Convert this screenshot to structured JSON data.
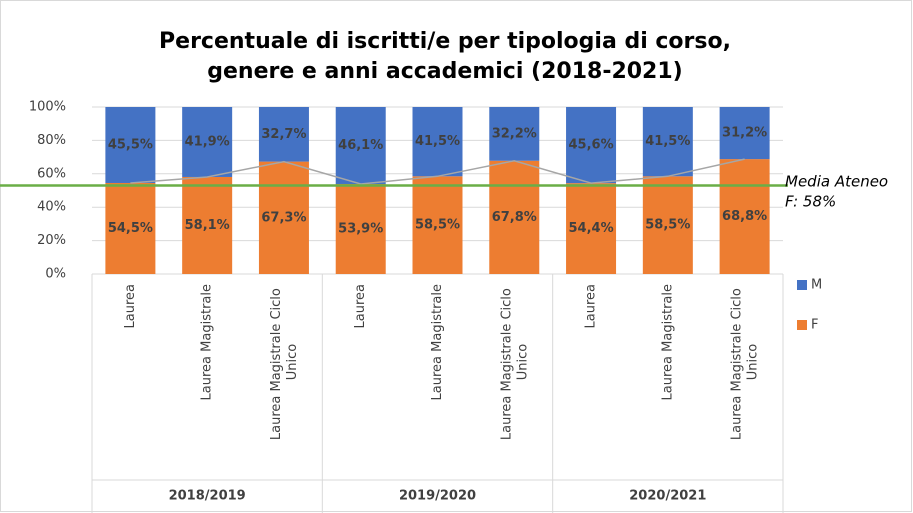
{
  "chart_data": {
    "type": "stacked_bar",
    "title": [
      "Percentuale di iscritti/e per tipologia di corso,",
      "genere e anni accademici (2018-2021)"
    ],
    "categories": [
      "Laurea",
      "Laurea Magistrale",
      "Laurea Magistrale Ciclo Unico",
      "Laurea",
      "Laurea Magistrale",
      "Laurea Magistrale Ciclo Unico",
      "Laurea",
      "Laurea Magistrale",
      "Laurea Magistrale Ciclo Unico"
    ],
    "groups": [
      "2018/2019",
      "2019/2020",
      "2020/2021"
    ],
    "series": [
      {
        "name": "F",
        "color": "#ed7d31",
        "values": [
          54.5,
          58.1,
          67.3,
          53.9,
          58.5,
          67.8,
          54.4,
          58.5,
          68.8
        ],
        "value_labels": [
          "54,5%",
          "58,1%",
          "67,3%",
          "53,9%",
          "58,5%",
          "67,8%",
          "54,4%",
          "58,5%",
          "68,8%"
        ]
      },
      {
        "name": "M",
        "color": "#4472c4",
        "values": [
          45.5,
          41.9,
          32.7,
          46.1,
          41.5,
          32.2,
          45.6,
          41.5,
          31.2
        ],
        "value_labels": [
          "45,5%",
          "41,9%",
          "32,7%",
          "46,1%",
          "41,5%",
          "32,2%",
          "45,6%",
          "41,5%",
          "31,2%"
        ]
      }
    ],
    "ylim": [
      0,
      100
    ],
    "yticks": [
      {
        "value": 0,
        "label": "0%"
      },
      {
        "value": 20,
        "label": "20%"
      },
      {
        "value": 40,
        "label": "40%"
      },
      {
        "value": 60,
        "label": "60%"
      },
      {
        "value": 80,
        "label": "80%"
      },
      {
        "value": 100,
        "label": "100%"
      }
    ],
    "grid": true,
    "series_lines": true,
    "reference_line": {
      "value": 53,
      "color": "#6aae47"
    },
    "annotation": [
      "Media Ateneo",
      "F: 58%"
    ],
    "legend_position": "right"
  }
}
